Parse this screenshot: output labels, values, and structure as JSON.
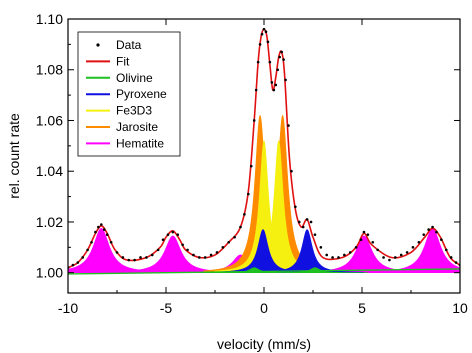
{
  "chart_data": {
    "type": "area",
    "title": "",
    "xlabel": "velocity (mm/s)",
    "ylabel": "rel. count rate",
    "xlim": [
      -10,
      10
    ],
    "ylim": [
      0.992,
      1.1
    ],
    "xticks": [
      -10,
      -5,
      0,
      5,
      10
    ],
    "xtick_labels": [
      "-10",
      "-5",
      "0",
      "5",
      "10"
    ],
    "yticks": [
      1.0,
      1.02,
      1.04,
      1.06,
      1.08,
      1.1
    ],
    "ytick_labels": [
      "1.00",
      "1.02",
      "1.04",
      "1.06",
      "1.08",
      "1.10"
    ],
    "grid": false,
    "legend_position": "top-left",
    "legend": [
      {
        "label": "Data",
        "marker": "dot",
        "color": "#000000"
      },
      {
        "label": "Fit",
        "marker": "line",
        "color": "#e01010"
      },
      {
        "label": "Olivine",
        "marker": "line",
        "color": "#20c020"
      },
      {
        "label": "Pyroxene",
        "marker": "line",
        "color": "#1010e0"
      },
      {
        "label": "Fe3D3",
        "marker": "line",
        "color": "#f5f010"
      },
      {
        "label": "Jarosite",
        "marker": "line",
        "color": "#ff8c00"
      },
      {
        "label": "Hematite",
        "marker": "line",
        "color": "#ff00ff"
      }
    ],
    "baseline": 1.0,
    "components": [
      {
        "name": "Hematite",
        "color": "#ff00ff",
        "peaks": [
          {
            "center": -8.3,
            "height": 0.0175,
            "width": 0.5
          },
          {
            "center": -4.65,
            "height": 0.0145,
            "width": 0.5
          },
          {
            "center": -1.2,
            "height": 0.007,
            "width": 0.5
          },
          {
            "center": 1.6,
            "height": 0.007,
            "width": 0.5
          },
          {
            "center": 5.1,
            "height": 0.0145,
            "width": 0.5
          },
          {
            "center": 8.6,
            "height": 0.0175,
            "width": 0.5
          }
        ]
      },
      {
        "name": "Jarosite",
        "color": "#ff8c00",
        "peaks": [
          {
            "center": -0.2,
            "height": 0.062,
            "width": 0.32
          },
          {
            "center": 0.95,
            "height": 0.062,
            "width": 0.32
          }
        ]
      },
      {
        "name": "Fe3D3",
        "color": "#f5f010",
        "peaks": [
          {
            "center": 0.0,
            "height": 0.052,
            "width": 0.28
          },
          {
            "center": 0.75,
            "height": 0.052,
            "width": 0.28
          }
        ]
      },
      {
        "name": "Pyroxene",
        "color": "#1010e0",
        "peaks": [
          {
            "center": -0.05,
            "height": 0.017,
            "width": 0.32
          },
          {
            "center": 2.2,
            "height": 0.017,
            "width": 0.32
          }
        ]
      },
      {
        "name": "Olivine",
        "color": "#20c020",
        "peaks": [
          {
            "center": -0.5,
            "height": 0.002,
            "width": 0.3
          },
          {
            "center": 2.6,
            "height": 0.002,
            "width": 0.3
          }
        ]
      }
    ],
    "fit": {
      "name": "Fit",
      "color": "#e01010",
      "x": [
        -10,
        -9.5,
        -9.0,
        -8.6,
        -8.3,
        -8.0,
        -7.6,
        -7.0,
        -6.0,
        -5.3,
        -5.0,
        -4.65,
        -4.3,
        -4.0,
        -3.3,
        -2.5,
        -1.8,
        -1.2,
        -0.8,
        -0.5,
        -0.3,
        -0.15,
        0.0,
        0.15,
        0.3,
        0.45,
        0.6,
        0.75,
        0.9,
        1.05,
        1.3,
        1.6,
        1.9,
        2.2,
        2.5,
        3.0,
        4.0,
        4.7,
        5.1,
        5.5,
        6.5,
        7.5,
        8.2,
        8.6,
        9.0,
        9.5,
        10
      ],
      "y": [
        1.002,
        1.004,
        1.009,
        1.0155,
        1.0185,
        1.0155,
        1.009,
        1.005,
        1.006,
        1.01,
        1.014,
        1.0165,
        1.013,
        1.009,
        1.006,
        1.007,
        1.012,
        1.018,
        1.032,
        1.06,
        1.083,
        1.093,
        1.096,
        1.093,
        1.082,
        1.072,
        1.077,
        1.085,
        1.087,
        1.078,
        1.045,
        1.025,
        1.018,
        1.021,
        1.014,
        1.006,
        1.006,
        1.01,
        1.0155,
        1.011,
        1.006,
        1.008,
        1.014,
        1.0175,
        1.014,
        1.006,
        1.003
      ]
    },
    "data_points": {
      "name": "Data",
      "color": "#000000",
      "x": [
        -10,
        -9.75,
        -9.5,
        -9.25,
        -9.0,
        -8.8,
        -8.6,
        -8.45,
        -8.3,
        -8.15,
        -8.0,
        -7.8,
        -7.5,
        -7.2,
        -6.9,
        -6.6,
        -6.3,
        -6.0,
        -5.7,
        -5.4,
        -5.15,
        -4.9,
        -4.65,
        -4.4,
        -4.15,
        -3.9,
        -3.6,
        -3.3,
        -3.0,
        -2.7,
        -2.4,
        -2.1,
        -1.8,
        -1.5,
        -1.2,
        -1.0,
        -0.8,
        -0.65,
        -0.5,
        -0.4,
        -0.3,
        -0.2,
        -0.1,
        0.0,
        0.1,
        0.2,
        0.3,
        0.4,
        0.5,
        0.6,
        0.7,
        0.8,
        0.9,
        1.0,
        1.1,
        1.25,
        1.4,
        1.6,
        1.8,
        2.0,
        2.2,
        2.4,
        2.6,
        2.9,
        3.2,
        3.5,
        3.8,
        4.1,
        4.4,
        4.7,
        4.95,
        5.1,
        5.3,
        5.55,
        5.8,
        6.1,
        6.4,
        6.7,
        7.0,
        7.3,
        7.6,
        7.9,
        8.15,
        8.4,
        8.6,
        8.8,
        9.05,
        9.3,
        9.55,
        9.8,
        10
      ],
      "y": [
        1.002,
        1.003,
        1.004,
        1.006,
        1.009,
        1.012,
        1.016,
        1.018,
        1.019,
        1.017,
        1.015,
        1.012,
        1.008,
        1.006,
        1.005,
        1.005,
        1.006,
        1.006,
        1.007,
        1.009,
        1.013,
        1.015,
        1.016,
        1.015,
        1.011,
        1.009,
        1.007,
        1.006,
        1.006,
        1.007,
        1.008,
        1.01,
        1.012,
        1.014,
        1.018,
        1.023,
        1.031,
        1.042,
        1.06,
        1.072,
        1.083,
        1.09,
        1.094,
        1.096,
        1.095,
        1.091,
        1.083,
        1.075,
        1.072,
        1.074,
        1.08,
        1.085,
        1.087,
        1.084,
        1.076,
        1.058,
        1.04,
        1.026,
        1.02,
        1.018,
        1.021,
        1.02,
        1.015,
        1.01,
        1.007,
        1.006,
        1.006,
        1.007,
        1.008,
        1.01,
        1.013,
        1.016,
        1.015,
        1.012,
        1.009,
        1.006,
        1.005,
        1.006,
        1.007,
        1.008,
        1.01,
        1.012,
        1.015,
        1.017,
        1.018,
        1.016,
        1.013,
        1.009,
        1.006,
        1.004,
        1.003
      ]
    }
  }
}
